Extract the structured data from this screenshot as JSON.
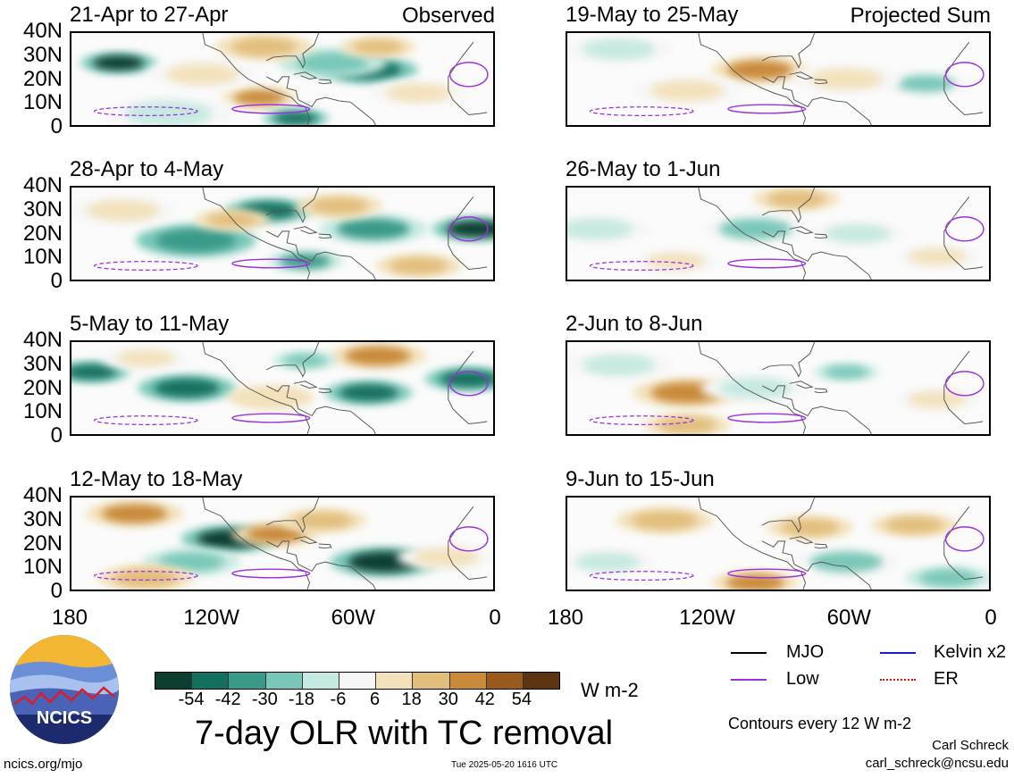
{
  "chart_data": {
    "type": "heatmap",
    "title": "7-day OLR with TC removal",
    "units": "W m-2",
    "colorbar": {
      "ticks": [
        "-54",
        "-42",
        "-30",
        "-18",
        "-6",
        "6",
        "18",
        "30",
        "42",
        "54"
      ],
      "colors": [
        "#0b3d30",
        "#14705e",
        "#3a9a89",
        "#79c7b8",
        "#c6e9e1",
        "#f6f6f6",
        "#f3e1bb",
        "#e2be7d",
        "#c98a3a",
        "#9a5a1c",
        "#5e3510"
      ]
    },
    "lat_ticks": [
      "40N",
      "30N",
      "20N",
      "10N",
      "0"
    ],
    "lon_ticks": [
      "180",
      "120W",
      "60W",
      "0"
    ],
    "lat_range": [
      0,
      40
    ],
    "lon_range": [
      -180,
      0
    ],
    "columns": [
      {
        "label": "Observed",
        "panels": [
          {
            "title": "21-Apr to 27-Apr",
            "blobs": [
              {
                "lon": -162,
                "lat": 27,
                "r": 7,
                "v": -50
              },
              {
                "lon": -52,
                "lat": 24,
                "r": 9,
                "v": -45
              },
              {
                "lon": -68,
                "lat": 27,
                "r": 10,
                "v": -20
              },
              {
                "lon": -98,
                "lat": 34,
                "r": 9,
                "v": 25
              },
              {
                "lon": -100,
                "lat": 12,
                "r": 7,
                "v": 30
              },
              {
                "lon": -48,
                "lat": 34,
                "r": 7,
                "v": 20
              },
              {
                "lon": -125,
                "lat": 22,
                "r": 10,
                "v": 12
              },
              {
                "lon": -84,
                "lat": 3,
                "r": 6,
                "v": -45
              },
              {
                "lon": -140,
                "lat": 5,
                "r": 12,
                "v": -12
              },
              {
                "lon": -30,
                "lat": 14,
                "r": 9,
                "v": 12
              }
            ]
          },
          {
            "title": "28-Apr to 4-May",
            "blobs": [
              {
                "lon": -128,
                "lat": 17,
                "r": 11,
                "v": -35
              },
              {
                "lon": -96,
                "lat": 30,
                "r": 8,
                "v": -40
              },
              {
                "lon": -50,
                "lat": 22,
                "r": 10,
                "v": -30
              },
              {
                "lon": -5,
                "lat": 22,
                "r": 8,
                "v": -50
              },
              {
                "lon": -65,
                "lat": 32,
                "r": 8,
                "v": 25
              },
              {
                "lon": -112,
                "lat": 26,
                "r": 7,
                "v": 20
              },
              {
                "lon": -160,
                "lat": 30,
                "r": 10,
                "v": 12
              },
              {
                "lon": -80,
                "lat": 8,
                "r": 7,
                "v": -30
              },
              {
                "lon": -30,
                "lat": 6,
                "r": 8,
                "v": 20
              }
            ]
          },
          {
            "title": "5-May to 11-May",
            "blobs": [
              {
                "lon": -174,
                "lat": 27,
                "r": 7,
                "v": -40
              },
              {
                "lon": -132,
                "lat": 20,
                "r": 9,
                "v": -42
              },
              {
                "lon": -52,
                "lat": 18,
                "r": 8,
                "v": -38
              },
              {
                "lon": -8,
                "lat": 24,
                "r": 8,
                "v": -40
              },
              {
                "lon": -48,
                "lat": 34,
                "r": 9,
                "v": 30
              },
              {
                "lon": -95,
                "lat": 16,
                "r": 8,
                "v": 15
              },
              {
                "lon": -150,
                "lat": 33,
                "r": 8,
                "v": 10
              },
              {
                "lon": -80,
                "lat": 32,
                "r": 6,
                "v": -20
              }
            ]
          },
          {
            "title": "12-May to 18-May",
            "blobs": [
              {
                "lon": -155,
                "lat": 33,
                "r": 9,
                "v": 35
              },
              {
                "lon": -113,
                "lat": 22,
                "r": 9,
                "v": -50
              },
              {
                "lon": -45,
                "lat": 12,
                "r": 10,
                "v": -55
              },
              {
                "lon": -93,
                "lat": 24,
                "r": 8,
                "v": 30
              },
              {
                "lon": -72,
                "lat": 30,
                "r": 8,
                "v": 20
              },
              {
                "lon": -130,
                "lat": 12,
                "r": 9,
                "v": -18
              },
              {
                "lon": -150,
                "lat": 5,
                "r": 9,
                "v": 20
              },
              {
                "lon": -18,
                "lat": 14,
                "r": 9,
                "v": 10
              }
            ]
          }
        ]
      },
      {
        "label": "Projected Sum",
        "panels": [
          {
            "title": "19-May to 25-May",
            "blobs": [
              {
                "lon": -98,
                "lat": 24,
                "r": 9,
                "v": 30
              },
              {
                "lon": -160,
                "lat": 33,
                "r": 10,
                "v": -10
              },
              {
                "lon": -25,
                "lat": 18,
                "r": 8,
                "v": -15
              },
              {
                "lon": -130,
                "lat": 15,
                "r": 10,
                "v": 10
              },
              {
                "lon": -60,
                "lat": 20,
                "r": 10,
                "v": 10
              }
            ]
          },
          {
            "title": "26-May to 1-Jun",
            "blobs": [
              {
                "lon": -170,
                "lat": 22,
                "r": 10,
                "v": -12
              },
              {
                "lon": -100,
                "lat": 22,
                "r": 10,
                "v": -14
              },
              {
                "lon": -82,
                "lat": 35,
                "r": 8,
                "v": 18
              },
              {
                "lon": -55,
                "lat": 20,
                "r": 9,
                "v": -10
              },
              {
                "lon": -135,
                "lat": 8,
                "r": 8,
                "v": 12
              },
              {
                "lon": -20,
                "lat": 10,
                "r": 8,
                "v": 8
              }
            ]
          },
          {
            "title": "2-Jun to 8-Jun",
            "blobs": [
              {
                "lon": -130,
                "lat": 18,
                "r": 10,
                "v": 35
              },
              {
                "lon": -60,
                "lat": 27,
                "r": 6,
                "v": -22
              },
              {
                "lon": -100,
                "lat": 20,
                "r": 10,
                "v": -12
              },
              {
                "lon": -130,
                "lat": 4,
                "r": 8,
                "v": 25
              },
              {
                "lon": -20,
                "lat": 15,
                "r": 8,
                "v": 10
              },
              {
                "lon": -160,
                "lat": 30,
                "r": 10,
                "v": -8
              }
            ]
          },
          {
            "title": "9-Jun to 15-Jun",
            "blobs": [
              {
                "lon": -140,
                "lat": 30,
                "r": 9,
                "v": 25
              },
              {
                "lon": -76,
                "lat": 27,
                "r": 8,
                "v": 22
              },
              {
                "lon": -30,
                "lat": 28,
                "r": 8,
                "v": 18
              },
              {
                "lon": -100,
                "lat": 3,
                "r": 8,
                "v": 40
              },
              {
                "lon": -60,
                "lat": 12,
                "r": 10,
                "v": -14
              },
              {
                "lon": -15,
                "lat": 5,
                "r": 8,
                "v": -20
              },
              {
                "lon": -165,
                "lat": 12,
                "r": 9,
                "v": -8
              }
            ]
          }
        ]
      }
    ],
    "legend": {
      "items": [
        {
          "label": "MJO",
          "color": "#000000",
          "style": "solid"
        },
        {
          "label": "Kelvin x2",
          "color": "#1a1ad6",
          "style": "solid"
        },
        {
          "label": "Low",
          "color": "#9b30e0",
          "style": "solid"
        },
        {
          "label": "ER",
          "color": "#e01010",
          "style": "dotted"
        }
      ]
    }
  },
  "footer": {
    "contour_note": "Contours every 12 W m-2",
    "author": "Carl Schreck",
    "email": "carl_schreck@ncsu.edu",
    "site": "ncics.org/mjo",
    "timestamp": "Tue 2025-05-20 1616 UTC",
    "logo_text": "NCICS"
  }
}
